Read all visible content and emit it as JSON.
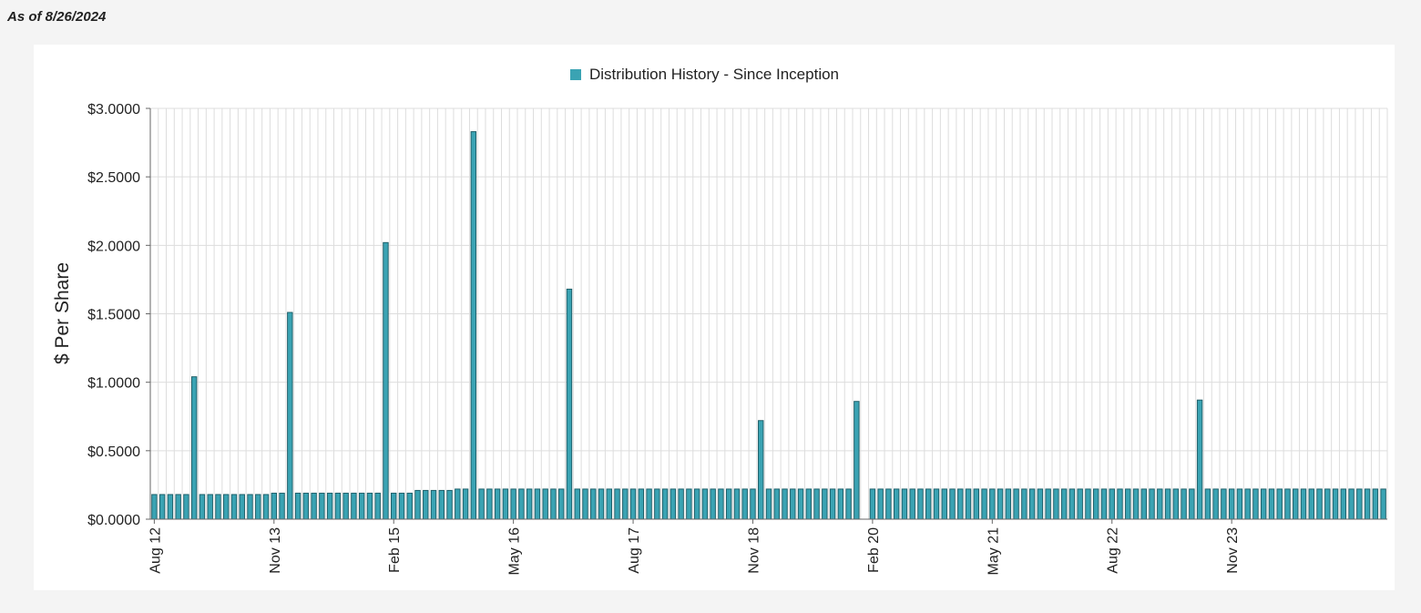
{
  "as_of": "As of 8/26/2024",
  "colors": {
    "bar_fill": "#3aa3b3",
    "bar_stroke": "#20606a",
    "grid": "#dddddd",
    "axis": "#666666"
  },
  "chart_data": {
    "type": "bar",
    "title": "",
    "legend": "Distribution History - Since Inception",
    "legend_position": "top-center",
    "xlabel": "",
    "ylabel": "$ Per Share",
    "ylim": [
      0,
      3
    ],
    "y_ticks": [
      "$0.0000",
      "$0.5000",
      "$1.0000",
      "$1.5000",
      "$2.0000",
      "$2.5000",
      "$3.0000"
    ],
    "x_tick_labels": [
      {
        "label": "Aug 12",
        "index": 0
      },
      {
        "label": "Nov 13",
        "index": 15
      },
      {
        "label": "Feb 15",
        "index": 30
      },
      {
        "label": "May 16",
        "index": 45
      },
      {
        "label": "Aug 17",
        "index": 60
      },
      {
        "label": "Nov 18",
        "index": 75
      },
      {
        "label": "Feb 20",
        "index": 90
      },
      {
        "label": "May 21",
        "index": 105
      },
      {
        "label": "Aug 22",
        "index": 120
      },
      {
        "label": "Nov 23",
        "index": 135
      }
    ],
    "series": [
      {
        "name": "Distribution History - Since Inception",
        "values": [
          0.18,
          0.18,
          0.18,
          0.18,
          0.18,
          1.04,
          0.18,
          0.18,
          0.18,
          0.18,
          0.18,
          0.18,
          0.18,
          0.18,
          0.18,
          0.19,
          0.19,
          1.51,
          0.19,
          0.19,
          0.19,
          0.19,
          0.19,
          0.19,
          0.19,
          0.19,
          0.19,
          0.19,
          0.19,
          2.02,
          0.19,
          0.19,
          0.19,
          0.21,
          0.21,
          0.21,
          0.21,
          0.21,
          0.22,
          0.22,
          2.83,
          0.22,
          0.22,
          0.22,
          0.22,
          0.22,
          0.22,
          0.22,
          0.22,
          0.22,
          0.22,
          0.22,
          1.68,
          0.22,
          0.22,
          0.22,
          0.22,
          0.22,
          0.22,
          0.22,
          0.22,
          0.22,
          0.22,
          0.22,
          0.22,
          0.22,
          0.22,
          0.22,
          0.22,
          0.22,
          0.22,
          0.22,
          0.22,
          0.22,
          0.22,
          0.22,
          0.72,
          0.22,
          0.22,
          0.22,
          0.22,
          0.22,
          0.22,
          0.22,
          0.22,
          0.22,
          0.22,
          0.22,
          0.86,
          0,
          0.22,
          0.22,
          0.22,
          0.22,
          0.22,
          0.22,
          0.22,
          0.22,
          0.22,
          0.22,
          0.22,
          0.22,
          0.22,
          0.22,
          0.22,
          0.22,
          0.22,
          0.22,
          0.22,
          0.22,
          0.22,
          0.22,
          0.22,
          0.22,
          0.22,
          0.22,
          0.22,
          0.22,
          0.22,
          0.22,
          0.22,
          0.22,
          0.22,
          0.22,
          0.22,
          0.22,
          0.22,
          0.22,
          0.22,
          0.22,
          0.22,
          0.87,
          0.22,
          0.22,
          0.22,
          0.22,
          0.22,
          0.22,
          0.22,
          0.22,
          0.22,
          0.22,
          0.22,
          0.22,
          0.22,
          0.22,
          0.22,
          0.22,
          0.22,
          0.22,
          0.22,
          0.22,
          0.22,
          0.22,
          0.22
        ]
      }
    ]
  }
}
